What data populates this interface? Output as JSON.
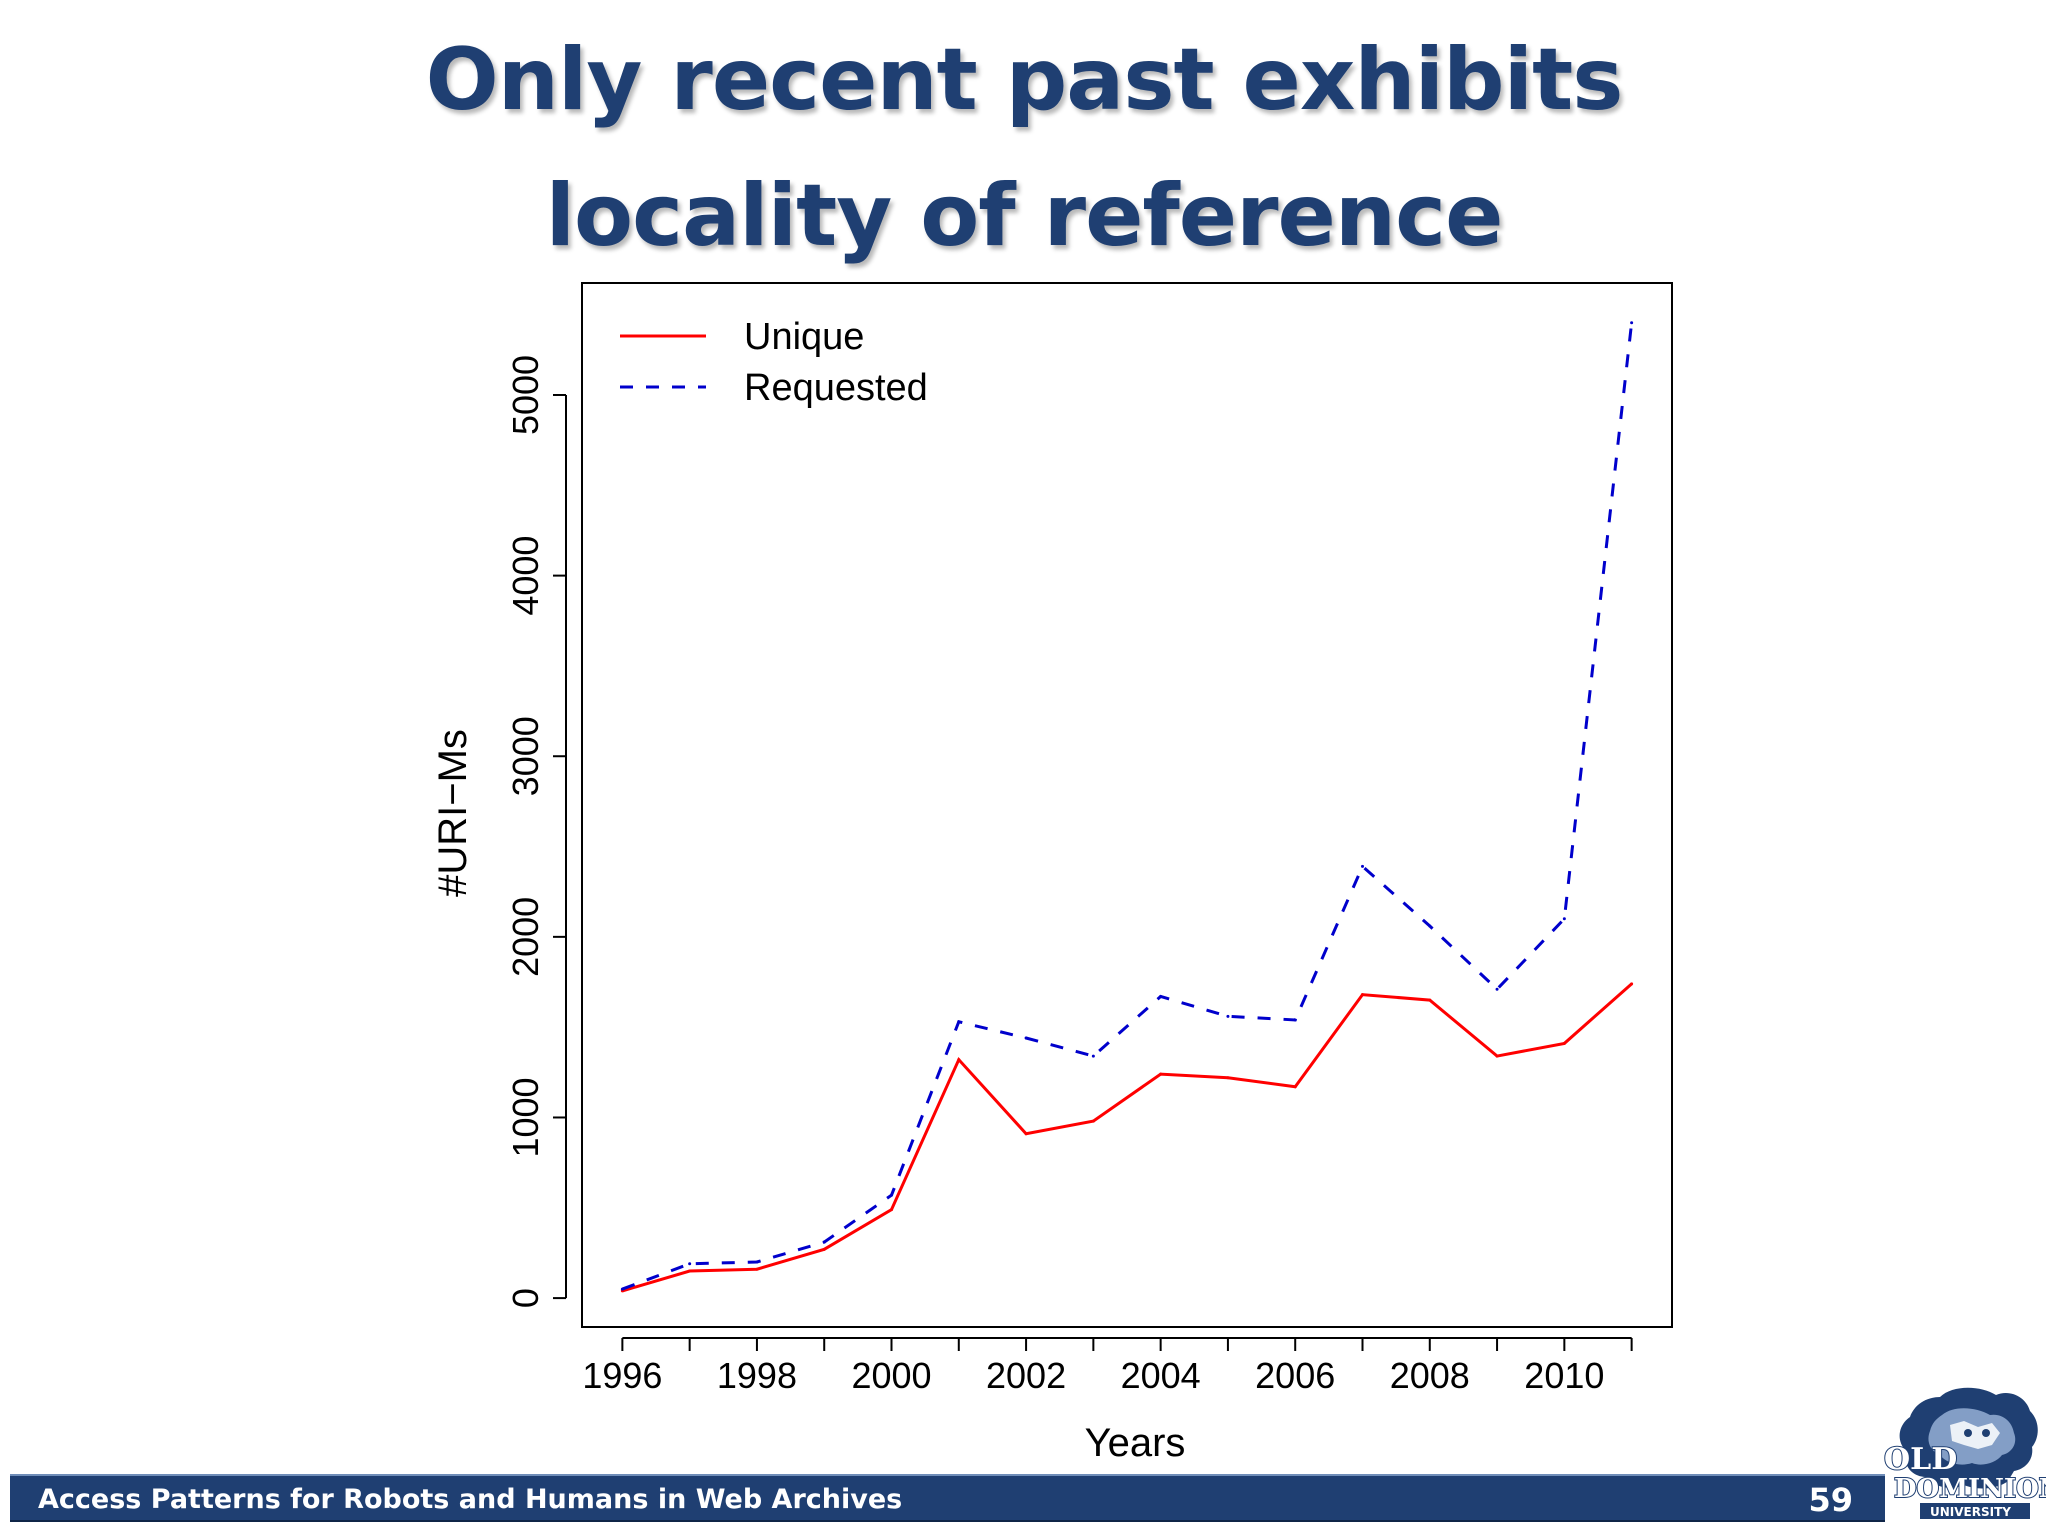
{
  "slide": {
    "title_line_1": "Only recent past exhibits",
    "title_line_2": "locality of reference",
    "footer_text": "Access Patterns for Robots and Humans in Web Archives",
    "page_number": "59",
    "logo": {
      "line_1": "OLD",
      "line_2": "DOMINION",
      "line_3": "UNIVERSITY"
    },
    "colors": {
      "title": "#1f3f72",
      "footer_bar": "#1f3f72"
    }
  },
  "chart_data": {
    "type": "line",
    "title": "",
    "xlabel": "Years",
    "ylabel": "#URI−Ms",
    "xlim": [
      1995.4,
      2011.6
    ],
    "ylim": [
      -160,
      5620
    ],
    "x_ticks": [
      1996,
      1997,
      1998,
      1999,
      2000,
      2001,
      2002,
      2003,
      2004,
      2005,
      2006,
      2007,
      2008,
      2009,
      2010,
      2011
    ],
    "x_tick_labels": [
      {
        "value": 1996,
        "label": "1996"
      },
      {
        "value": 1998,
        "label": "1998"
      },
      {
        "value": 2000,
        "label": "2000"
      },
      {
        "value": 2002,
        "label": "2002"
      },
      {
        "value": 2004,
        "label": "2004"
      },
      {
        "value": 2006,
        "label": "2006"
      },
      {
        "value": 2008,
        "label": "2008"
      },
      {
        "value": 2010,
        "label": "2010"
      }
    ],
    "y_ticks": [
      {
        "value": 0,
        "label": "0"
      },
      {
        "value": 1000,
        "label": "1000"
      },
      {
        "value": 2000,
        "label": "2000"
      },
      {
        "value": 3000,
        "label": "3000"
      },
      {
        "value": 4000,
        "label": "4000"
      },
      {
        "value": 5000,
        "label": "5000"
      }
    ],
    "x": [
      1996,
      1997,
      1998,
      1999,
      2000,
      2001,
      2002,
      2003,
      2004,
      2005,
      2006,
      2007,
      2008,
      2009,
      2010,
      2011
    ],
    "series": [
      {
        "name": "Unique",
        "color": "#ff0000",
        "style": "solid",
        "values": [
          40,
          150,
          160,
          270,
          490,
          1320,
          910,
          980,
          1240,
          1220,
          1170,
          1680,
          1650,
          1340,
          1410,
          1740
        ]
      },
      {
        "name": "Requested",
        "color": "#0000cc",
        "style": "dashed",
        "values": [
          50,
          190,
          200,
          310,
          570,
          1530,
          1440,
          1340,
          1670,
          1560,
          1540,
          2390,
          2060,
          1710,
          2100,
          5400
        ]
      }
    ],
    "grid": false,
    "legend": "top-left"
  }
}
